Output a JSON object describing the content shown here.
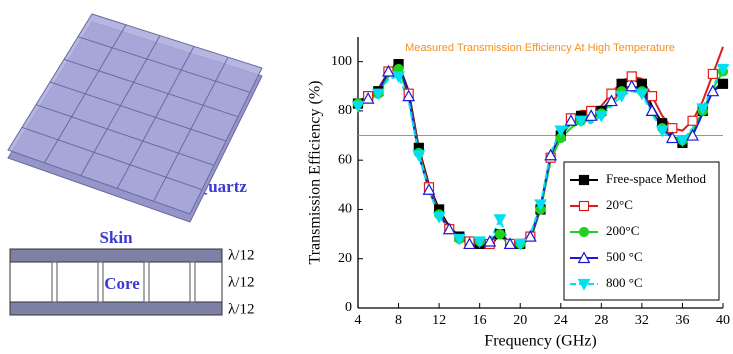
{
  "chart_data": {
    "type": "line",
    "title": "Measured Transmission Efficiency At High Temperature",
    "title_color": "#f5901e",
    "x_label": "Frequency (GHz)",
    "y_label": "Transmission Efficiency (%)",
    "x": [
      4,
      5,
      6,
      7,
      8,
      9,
      10,
      11,
      12,
      13,
      14,
      15,
      16,
      17,
      18,
      19,
      20,
      21,
      22,
      23,
      24,
      25,
      26,
      27,
      28,
      29,
      30,
      31,
      32,
      33,
      34,
      35,
      36,
      37,
      38,
      39,
      40
    ],
    "series": [
      {
        "name": "Free-space Method",
        "color": "#000000",
        "marker": "square-filled",
        "values": [
          83,
          85,
          88,
          95,
          99,
          88,
          65,
          50,
          40,
          33,
          29,
          27,
          26,
          25,
          30,
          26,
          26,
          28,
          40,
          60,
          70,
          75,
          78,
          77,
          80,
          85,
          91,
          93,
          91,
          82,
          75,
          70,
          67,
          70,
          80,
          88,
          91
        ]
      },
      {
        "name": "20°C",
        "color": "#e31a1a",
        "marker": "square-open",
        "values": [
          84,
          86,
          89,
          96,
          99,
          87,
          64,
          49,
          39,
          32,
          28,
          27,
          27,
          26,
          31,
          26,
          27,
          29,
          41,
          61,
          71,
          77,
          80,
          80,
          82,
          87,
          92,
          94,
          93,
          86,
          78,
          73,
          72,
          76,
          84,
          95,
          106
        ]
      },
      {
        "name": "200°C",
        "color": "#1ed21e",
        "marker": "circle-filled",
        "values": [
          83,
          84,
          87,
          94,
          97,
          86,
          63,
          48,
          38,
          32,
          28,
          26,
          27,
          26,
          30,
          25,
          26,
          29,
          40,
          60,
          69,
          73,
          76,
          76,
          79,
          83,
          88,
          89,
          88,
          80,
          73,
          69,
          68,
          72,
          80,
          89,
          96
        ]
      },
      {
        "name": "500 °C",
        "color": "#1a1ad2",
        "marker": "triangle-open",
        "values": [
          84,
          85,
          88,
          96,
          100,
          86,
          62,
          48,
          38,
          32,
          28,
          26,
          27,
          27,
          31,
          26,
          26,
          29,
          41,
          62,
          71,
          76,
          79,
          78,
          80,
          84,
          89,
          90,
          89,
          80,
          73,
          69,
          67,
          70,
          79,
          88,
          92
        ]
      },
      {
        "name": "800 °C",
        "color": "#00e0ee",
        "marker": "triangle-down-filled",
        "values": [
          82,
          84,
          87,
          93,
          94,
          84,
          62,
          48,
          37,
          32,
          28,
          26,
          27,
          27,
          36,
          25,
          26,
          30,
          42,
          63,
          72,
          74,
          76,
          75,
          78,
          82,
          86,
          88,
          87,
          79,
          72,
          68,
          68,
          73,
          81,
          90,
          97
        ]
      }
    ],
    "xlim": [
      4,
      40
    ],
    "xticks": [
      4,
      8,
      12,
      16,
      20,
      24,
      28,
      32,
      36,
      40
    ],
    "ylim": [
      0,
      110
    ],
    "yticks": [
      0,
      20,
      40,
      60,
      80,
      100
    ],
    "reference_line": 70,
    "reference_color": "#ff4cff",
    "legend": "lower-right"
  },
  "diagram": {
    "quartz": "Quartz",
    "skin": "Skin",
    "core": "Core",
    "layer_thickness": [
      "λ/12",
      "λ/12",
      "λ/12"
    ]
  }
}
